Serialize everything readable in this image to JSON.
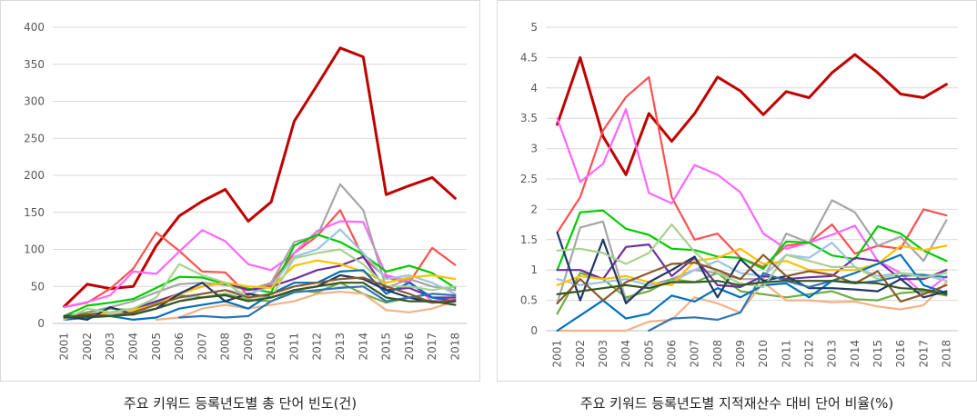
{
  "chart_data": [
    {
      "type": "line",
      "title": "주요 키워드 등록년도별 총 단어 빈도(건)",
      "ylim": [
        0,
        400
      ],
      "yticks": [
        0,
        50,
        100,
        150,
        200,
        250,
        300,
        350,
        400
      ],
      "grid": true,
      "x": [
        "2001",
        "2002",
        "2003",
        "2004",
        "2005",
        "2006",
        "2007",
        "2008",
        "2009",
        "2010",
        "2011",
        "2012",
        "2013",
        "2014",
        "2015",
        "2016",
        "2017",
        "2018"
      ],
      "series": [
        {
          "color": "#c00000",
          "values": [
            23,
            53,
            47,
            50,
            105,
            145,
            165,
            181,
            138,
            164,
            273,
            322,
            372,
            360,
            174,
            186,
            197,
            169
          ]
        },
        {
          "color": "#ff5050",
          "values": [
            22,
            28,
            47,
            74,
            123,
            98,
            70,
            69,
            38,
            54,
            95,
            118,
            153,
            89,
            62,
            55,
            102,
            79
          ]
        },
        {
          "color": "#ff66ff",
          "values": [
            22,
            29,
            38,
            70,
            67,
            97,
            126,
            111,
            80,
            72,
            95,
            125,
            138,
            137,
            65,
            57,
            30,
            36
          ]
        },
        {
          "color": "#a6a6a6",
          "values": [
            10,
            15,
            22,
            30,
            42,
            53,
            55,
            52,
            45,
            55,
            110,
            118,
            188,
            153,
            48,
            60,
            50,
            45
          ]
        },
        {
          "color": "#00cc00",
          "values": [
            10,
            24,
            28,
            33,
            48,
            63,
            62,
            53,
            47,
            42,
            105,
            120,
            110,
            93,
            70,
            78,
            68,
            48
          ]
        },
        {
          "color": "#70ad47",
          "values": [
            5,
            15,
            20,
            18,
            28,
            38,
            35,
            40,
            32,
            30,
            45,
            42,
            55,
            40,
            28,
            35,
            30,
            25
          ]
        },
        {
          "color": "#9dc3e6",
          "values": [
            8,
            10,
            12,
            15,
            20,
            30,
            40,
            45,
            40,
            50,
            90,
            100,
            127,
            95,
            60,
            65,
            55,
            40
          ]
        },
        {
          "color": "#7030a0",
          "values": [
            10,
            12,
            15,
            20,
            30,
            40,
            50,
            55,
            45,
            50,
            60,
            72,
            78,
            90,
            45,
            48,
            35,
            35
          ]
        },
        {
          "color": "#ffc000",
          "values": [
            5,
            10,
            15,
            18,
            25,
            40,
            50,
            55,
            50,
            48,
            78,
            85,
            80,
            70,
            55,
            62,
            65,
            60
          ]
        },
        {
          "color": "#f4b183",
          "values": [
            null,
            null,
            null,
            null,
            5,
            8,
            20,
            25,
            20,
            25,
            30,
            40,
            43,
            40,
            18,
            15,
            20,
            30
          ]
        },
        {
          "color": "#0070c0",
          "values": [
            5,
            8,
            10,
            5,
            8,
            20,
            25,
            30,
            20,
            40,
            55,
            55,
            70,
            72,
            40,
            55,
            35,
            30
          ]
        },
        {
          "color": "#1f3864",
          "values": [
            10,
            5,
            22,
            12,
            20,
            40,
            55,
            30,
            40,
            35,
            45,
            50,
            65,
            60,
            45,
            35,
            28,
            30
          ]
        },
        {
          "color": "#2e75b6",
          "values": [
            null,
            null,
            null,
            null,
            null,
            8,
            10,
            8,
            10,
            30,
            42,
            45,
            48,
            50,
            30,
            35,
            40,
            38
          ]
        },
        {
          "color": "#a9d18e",
          "values": [
            5,
            20,
            15,
            20,
            35,
            80,
            65,
            55,
            35,
            35,
            88,
            95,
            100,
            80,
            50,
            50,
            45,
            50
          ]
        },
        {
          "color": "#8b5a2b",
          "values": [
            8,
            12,
            10,
            15,
            25,
            35,
            40,
            45,
            35,
            40,
            50,
            55,
            60,
            62,
            50,
            40,
            28,
            32
          ]
        },
        {
          "color": "#375623",
          "values": [
            8,
            10,
            10,
            12,
            20,
            30,
            35,
            38,
            30,
            35,
            45,
            50,
            55,
            55,
            35,
            30,
            30,
            25
          ]
        }
      ]
    },
    {
      "type": "line",
      "title": "주요 키워드 등록년도별 지적재산수 대비 단어 비율(%)",
      "ylim": [
        0,
        5
      ],
      "yticks": [
        "0",
        "0.5",
        "1",
        "1.5",
        "2",
        "2.5",
        "3",
        "3.5",
        "4",
        "4.5",
        "5"
      ],
      "grid": true,
      "x": [
        "2001",
        "2002",
        "2003",
        "2004",
        "2005",
        "2006",
        "2007",
        "2008",
        "2009",
        "2010",
        "2011",
        "2012",
        "2013",
        "2014",
        "2015",
        "2016",
        "2017",
        "2018"
      ],
      "series": [
        {
          "color": "#c00000",
          "values": [
            3.4,
            4.5,
            3.2,
            2.57,
            3.58,
            3.12,
            3.58,
            4.18,
            3.95,
            3.56,
            3.94,
            3.84,
            4.25,
            4.55,
            4.25,
            3.9,
            3.84,
            4.06
          ]
        },
        {
          "color": "#ff5050",
          "values": [
            1.62,
            2.2,
            3.3,
            3.85,
            4.18,
            2.2,
            1.5,
            1.6,
            1.2,
            1.05,
            1.4,
            1.45,
            1.75,
            1.27,
            1.4,
            1.35,
            2.0,
            1.9
          ]
        },
        {
          "color": "#ff66ff",
          "values": [
            3.5,
            2.45,
            2.75,
            3.65,
            2.27,
            2.1,
            2.73,
            2.57,
            2.28,
            1.6,
            1.35,
            1.45,
            1.58,
            1.73,
            1.15,
            0.95,
            0.6,
            0.9
          ]
        },
        {
          "color": "#a6a6a6",
          "values": [
            0.45,
            1.7,
            1.8,
            0.5,
            0.75,
            0.85,
            1.0,
            0.95,
            0.85,
            0.85,
            1.6,
            1.45,
            2.15,
            1.95,
            1.4,
            1.55,
            1.15,
            1.82
          ]
        },
        {
          "color": "#00cc00",
          "values": [
            1.0,
            1.95,
            1.98,
            1.68,
            1.58,
            1.35,
            1.33,
            1.22,
            1.2,
            1.02,
            1.47,
            1.45,
            1.24,
            1.18,
            1.72,
            1.6,
            1.32,
            1.15
          ]
        },
        {
          "color": "#70ad47",
          "values": [
            0.28,
            0.95,
            0.85,
            0.55,
            0.65,
            0.85,
            0.8,
            0.95,
            0.65,
            0.6,
            0.55,
            0.6,
            0.65,
            0.52,
            0.5,
            0.62,
            0.65,
            0.58
          ]
        },
        {
          "color": "#9dc3e6",
          "values": [
            0.85,
            0.75,
            0.8,
            0.85,
            0.75,
            0.8,
            1.0,
            1.15,
            0.95,
            0.9,
            1.25,
            1.2,
            1.45,
            1.05,
            0.9,
            0.95,
            0.92,
            0.82
          ]
        },
        {
          "color": "#7030a0",
          "values": [
            1.0,
            1.0,
            0.85,
            1.38,
            1.42,
            0.9,
            1.2,
            0.75,
            0.72,
            0.9,
            0.85,
            0.88,
            0.9,
            1.2,
            1.15,
            0.85,
            0.85,
            1.0
          ]
        },
        {
          "color": "#ffc000",
          "values": [
            0.75,
            0.9,
            0.85,
            0.9,
            0.8,
            0.75,
            1.15,
            1.2,
            1.35,
            1.1,
            1.15,
            1.0,
            1.0,
            1.0,
            1.1,
            1.4,
            1.33,
            1.4
          ]
        },
        {
          "color": "#f4b183",
          "values": [
            0,
            0,
            0,
            0,
            0.15,
            0.18,
            0.55,
            0.45,
            0.3,
            0.8,
            0.5,
            0.5,
            0.47,
            0.48,
            0.4,
            0.35,
            0.42,
            0.8
          ]
        },
        {
          "color": "#0070c0",
          "values": [
            0,
            0.25,
            0.5,
            0.2,
            0.28,
            0.58,
            0.48,
            0.7,
            0.55,
            0.75,
            0.78,
            0.55,
            0.82,
            0.95,
            1.1,
            1.25,
            0.75,
            0.62
          ]
        },
        {
          "color": "#1f3864",
          "values": [
            1.62,
            0.5,
            1.5,
            0.45,
            0.8,
            1.0,
            1.22,
            0.55,
            1.18,
            0.82,
            0.9,
            0.7,
            0.7,
            0.68,
            0.65,
            0.85,
            0.55,
            0.65
          ]
        },
        {
          "color": "#2e75b6",
          "values": [
            null,
            null,
            null,
            null,
            0,
            0.2,
            0.22,
            0.18,
            0.3,
            0.95,
            0.82,
            0.72,
            0.82,
            0.78,
            0.82,
            0.9,
            0.92,
            0.88
          ]
        },
        {
          "color": "#a9d18e",
          "values": [
            1.32,
            1.35,
            1.28,
            1.1,
            1.28,
            1.75,
            1.3,
            0.95,
            0.78,
            0.72,
            1.25,
            1.15,
            1.05,
            1.05,
            0.85,
            0.95,
            0.88,
            0.95
          ]
        },
        {
          "color": "#8b5a2b",
          "values": [
            0.45,
            0.85,
            0.5,
            0.8,
            0.95,
            1.1,
            1.12,
            1.0,
            0.85,
            1.25,
            0.9,
            0.98,
            0.92,
            0.78,
            0.98,
            0.48,
            0.6,
            0.75
          ]
        },
        {
          "color": "#375623",
          "values": [
            0.6,
            0.65,
            0.7,
            0.75,
            0.7,
            0.8,
            0.8,
            0.82,
            0.75,
            0.8,
            0.82,
            0.82,
            0.82,
            0.8,
            0.78,
            0.7,
            0.68,
            0.6
          ]
        }
      ]
    }
  ]
}
